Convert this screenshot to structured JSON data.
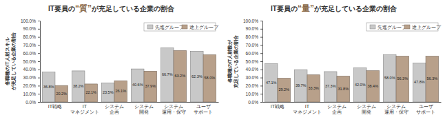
{
  "chart_data": [
    {
      "type": "bar",
      "title": "IT要員の“質”が充足している企業の割合",
      "y_label": "各職種のIT人材スキルが充足している企業の割合",
      "categories": [
        "IT戦略",
        "IT\nマネジメント",
        "システム\n企画",
        "システム\n開発",
        "システム\n運用・保守",
        "ユーザ\nサポート"
      ],
      "series": [
        {
          "name": "先進グループ",
          "color": "#c8c8c8",
          "values": [
            36.8,
            38.2,
            23.5,
            40.6,
            66.7,
            62.3
          ],
          "value_labels": [
            "36.8%",
            "38.2%",
            "23.5%",
            "40.6%",
            "66.7%",
            "62.3%"
          ]
        },
        {
          "name": "途上グループ",
          "color": "#b8a08a",
          "values": [
            20.2,
            22.1,
            26.1,
            37.9,
            63.2,
            58.0
          ],
          "value_labels": [
            "20.2%",
            "22.1%",
            "26.1%",
            "37.9%",
            "63.2%",
            "58.0%"
          ]
        }
      ],
      "ylim": [
        0,
        100
      ],
      "yticks": [
        {
          "value": 0,
          "label": "0.0%"
        },
        {
          "value": 10,
          "label": "10.0%"
        },
        {
          "value": 20,
          "label": "20.0%"
        },
        {
          "value": 30,
          "label": "30.0%"
        },
        {
          "value": 40,
          "label": "40.0%"
        },
        {
          "value": 50,
          "label": "50.0%"
        },
        {
          "value": 60,
          "label": "60.0%"
        },
        {
          "value": 70,
          "label": "70.0%"
        },
        {
          "value": 80,
          "label": "80.0%"
        },
        {
          "value": 90,
          "label": "90.0%"
        },
        {
          "value": 100,
          "label": "100.0%"
        }
      ],
      "grid": false,
      "legend": "top-right",
      "data_labels": true
    },
    {
      "type": "bar",
      "title": "IT要員の“量”が充足している企業の割合",
      "y_label": "各職種のIT人材数が充足している企業の割合",
      "categories": [
        "IT戦略",
        "IT\nマネジメント",
        "システム\n企画",
        "システム\n開発",
        "システム\n運用・保守",
        "ユーザ\nサポート"
      ],
      "series": [
        {
          "name": "先進グループ",
          "color": "#c8c8c8",
          "values": [
            47.1,
            39.7,
            37.3,
            42.0,
            58.0,
            47.8
          ],
          "value_labels": [
            "47.1%",
            "39.7%",
            "37.3%",
            "42.0%",
            "58.0%",
            "47.8%"
          ]
        },
        {
          "name": "途上グループ",
          "color": "#b8a08a",
          "values": [
            29.2,
            33.3,
            31.8,
            38.4,
            56.3,
            56.3
          ],
          "value_labels": [
            "29.2%",
            "33.3%",
            "31.8%",
            "38.4%",
            "56.3%",
            "56.3%"
          ]
        }
      ],
      "ylim": [
        0,
        100
      ],
      "yticks": [
        {
          "value": 0,
          "label": "0.0%"
        },
        {
          "value": 10,
          "label": "10.0%"
        },
        {
          "value": 20,
          "label": "20.0%"
        },
        {
          "value": 30,
          "label": "30.0%"
        },
        {
          "value": 40,
          "label": "40.0%"
        },
        {
          "value": 50,
          "label": "50.0%"
        },
        {
          "value": 60,
          "label": "60.0%"
        },
        {
          "value": 70,
          "label": "70.0%"
        },
        {
          "value": 80,
          "label": "80.0%"
        },
        {
          "value": 90,
          "label": "90.0%"
        },
        {
          "value": 100,
          "label": "100.0%"
        }
      ],
      "grid": false,
      "legend": "top-right",
      "data_labels": true
    }
  ]
}
